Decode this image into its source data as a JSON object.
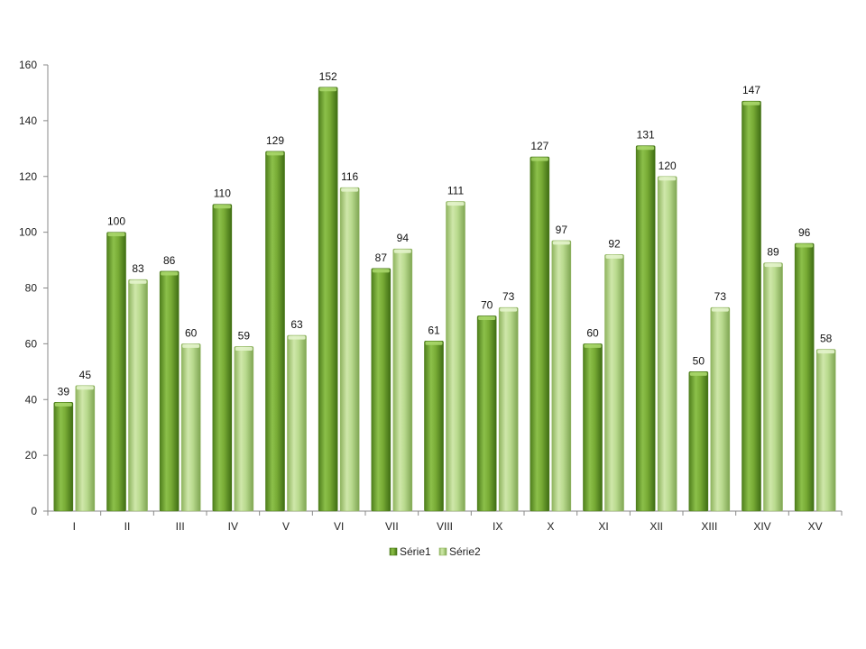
{
  "chart_data": {
    "type": "bar",
    "title": "",
    "xlabel": "",
    "ylabel": "",
    "categories": [
      "I",
      "II",
      "III",
      "IV",
      "V",
      "VI",
      "VII",
      "VIII",
      "IX",
      "X",
      "XI",
      "XII",
      "XIII",
      "XIV",
      "XV"
    ],
    "series": [
      {
        "name": "Série1",
        "color": "#6fa12a",
        "values": [
          39,
          100,
          86,
          110,
          129,
          152,
          87,
          61,
          70,
          127,
          60,
          131,
          50,
          147,
          96
        ]
      },
      {
        "name": "Série2",
        "color": "#a9cf7a",
        "values": [
          45,
          83,
          60,
          59,
          63,
          116,
          94,
          111,
          73,
          97,
          92,
          120,
          73,
          89,
          58
        ]
      }
    ],
    "ylim": [
      0,
      160
    ],
    "yticks": [
      0,
      20,
      40,
      60,
      80,
      100,
      120,
      140,
      160
    ],
    "grid": false,
    "legend_position": "bottom"
  }
}
